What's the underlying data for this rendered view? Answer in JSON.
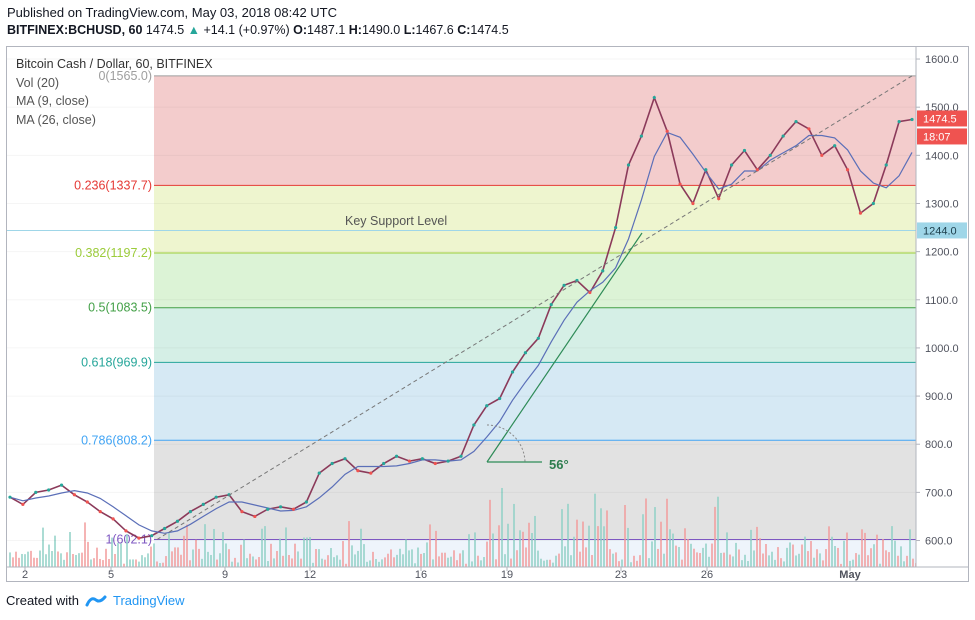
{
  "header": {
    "published": "Published on TradingView.com, May 03, 2018 08:42 UTC",
    "symbol": "BITFINEX:BCHUSD, 60",
    "last": "1474.5",
    "change": "+14.1 (+0.97%)",
    "open_label": "O:",
    "open": "1487.1",
    "high_label": "H:",
    "high": "1490.0",
    "low_label": "L:",
    "low": "1467.6",
    "close_label": "C:",
    "close": "1474.5"
  },
  "legend": {
    "title": "Bitcoin Cash / Dollar, 60, BITFINEX",
    "vol": "Vol (20)",
    "ma9": "MA (9, close)",
    "ma26": "MA (26, close)"
  },
  "annotations": {
    "key_support": "Key Support Level",
    "angle": "56°"
  },
  "footer": {
    "created_with": "Created with",
    "brand": "TradingView"
  },
  "chart_data": {
    "type": "line",
    "subtype": "candlestick-with-fibonacci",
    "title": "Bitcoin Cash / Dollar, 60, BITFINEX",
    "x_ticks": [
      "2",
      "5",
      "9",
      "12",
      "16",
      "19",
      "23",
      "26",
      "May"
    ],
    "y_ticks": [
      600,
      700,
      800,
      900,
      1000,
      1100,
      1200,
      1300,
      1400,
      1500,
      1600
    ],
    "ylim": [
      545,
      1625
    ],
    "price_labels": [
      {
        "text": "1474.5",
        "value": 1474.5,
        "color": "#ef5350"
      },
      {
        "text": "18:07",
        "value": 1474.5,
        "color": "#ef5350"
      },
      {
        "text": "1244.0",
        "value": 1244.0,
        "color": "#9fd6e8"
      }
    ],
    "fib_levels": [
      {
        "label": "0(1565.0)",
        "value": 1565.0,
        "color": "#9e9e9e",
        "fill": "#f3cccc"
      },
      {
        "label": "0.236(1337.7)",
        "value": 1337.7,
        "color": "#e53935",
        "fill": "#eef5cf"
      },
      {
        "label": "0.382(1197.2)",
        "value": 1197.2,
        "color": "#9ccc3a",
        "fill": "#dcf3d6"
      },
      {
        "label": "0.5(1083.5)",
        "value": 1083.5,
        "color": "#43a047",
        "fill": "#d5efe6"
      },
      {
        "label": "0.618(969.9)",
        "value": 969.9,
        "color": "#26a69a",
        "fill": "#d6e9f4"
      },
      {
        "label": "0.786(808.2)",
        "value": 808.2,
        "color": "#42a5f5",
        "fill": "#e2e2e2"
      },
      {
        "label": "1(602.1)",
        "value": 602.1,
        "color": "#7e57c2",
        "fill": "#d8d4f3"
      }
    ],
    "key_support_level": 1244.0,
    "series": [
      {
        "values": [
          690,
          675,
          700,
          705,
          715,
          695,
          680,
          660,
          645,
          620,
          605,
          610,
          625,
          640,
          660,
          675,
          690,
          695,
          660,
          650,
          665,
          670,
          665,
          680,
          740,
          760,
          770,
          745,
          740,
          760,
          775,
          765,
          770,
          760,
          765,
          775,
          840,
          880,
          895,
          950,
          990,
          1020,
          1090,
          1130,
          1140,
          1115,
          1160,
          1250,
          1380,
          1440,
          1520,
          1450,
          1340,
          1300,
          1370,
          1310,
          1380,
          1410,
          1370,
          1400,
          1440,
          1470,
          1455,
          1400,
          1420,
          1370,
          1280,
          1300,
          1380,
          1470,
          1474.5
        ]
      }
    ],
    "trendline": {
      "from": {
        "x": "18",
        "y": 755
      },
      "to": {
        "x": "May 3",
        "y": 1565
      }
    }
  }
}
